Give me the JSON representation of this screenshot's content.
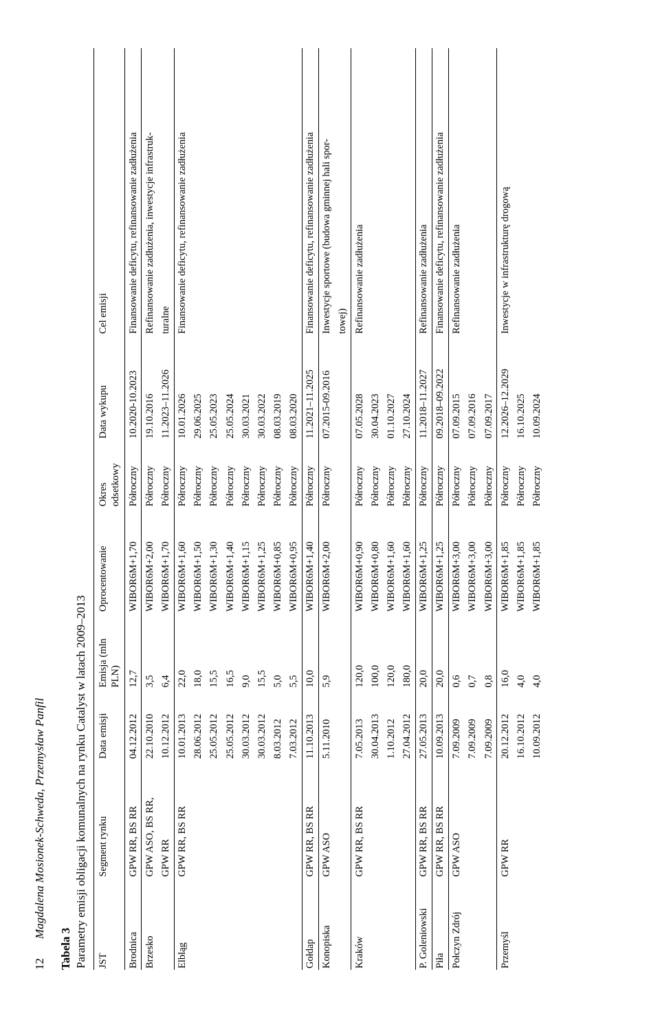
{
  "page_number": "12",
  "authors": "Magdalena Mosionek-Schweda, Przemysław Panfil",
  "table_label": "Tabela 3",
  "table_caption": "Parametry emisji obligacji komunalnych na rynku Catalyst w latach 2009–2013",
  "headers": {
    "jst": "JST",
    "segment": "Segment rynku",
    "data_emisji": "Data emisji",
    "emisja": "Emisja (mln PLN)",
    "oprocentowanie": "Oprocentowanie",
    "okres": "Okres odsetkowy",
    "data_wykupu": "Data wykupu",
    "cel": "Cel emisji"
  },
  "rows": [
    {
      "group_start": true,
      "jst": "Brodnica",
      "segment": "GPW RR, BS RR",
      "data_emisji": "04.12.2012",
      "emisja": "12,7",
      "oproc": "WIBOR6M+1,70",
      "okres": "Półroczny",
      "wykup": "10.2020-10.2023",
      "cel": "Finansowanie deficytu, refinansowanie zadłużenia"
    },
    {
      "group_start": true,
      "jst": "Brzesko",
      "segment": "GPW ASO, BS RR,",
      "data_emisji": "22.10.2010",
      "emisja": "3,5",
      "oproc": "WIBOR6M+2,00",
      "okres": "Półroczny",
      "wykup": "19.10.2016",
      "cel": "Refinansowanie zadłużenia, inwestycje infrastruk-"
    },
    {
      "group_start": false,
      "jst": "",
      "segment": "GPW RR",
      "data_emisji": "10.12.2012",
      "emisja": "6,4",
      "oproc": "WIBOR6M+1,70",
      "okres": "Półroczny",
      "wykup": "11.2023–11.2026",
      "cel": "turalne"
    },
    {
      "group_start": true,
      "jst": "Elbląg",
      "segment": "GPW RR, BS RR",
      "data_emisji": "10.01.2013",
      "emisja": "22,0",
      "oproc": "WIBOR6M+1,60",
      "okres": "Półroczny",
      "wykup": "10.01.2026",
      "cel": "Finansowanie deficytu, refinansowanie zadłużenia"
    },
    {
      "group_start": false,
      "jst": "",
      "segment": "",
      "data_emisji": "28.06.2012",
      "emisja": "18,0",
      "oproc": "WIBOR6M+1,50",
      "okres": "Półroczny",
      "wykup": "29.06.2025",
      "cel": ""
    },
    {
      "group_start": false,
      "jst": "",
      "segment": "",
      "data_emisji": "25.05.2012",
      "emisja": "15,5",
      "oproc": "WIBOR6M+1,30",
      "okres": "Półroczny",
      "wykup": "25.05.2023",
      "cel": ""
    },
    {
      "group_start": false,
      "jst": "",
      "segment": "",
      "data_emisji": "25.05.2012",
      "emisja": "16,5",
      "oproc": "WIBOR6M+1,40",
      "okres": "Półroczny",
      "wykup": "25.05.2024",
      "cel": ""
    },
    {
      "group_start": false,
      "jst": "",
      "segment": "",
      "data_emisji": "30.03.2012",
      "emisja": "9,0",
      "oproc": "WIBOR6M+1,15",
      "okres": "Półroczny",
      "wykup": "30.03.2021",
      "cel": ""
    },
    {
      "group_start": false,
      "jst": "",
      "segment": "",
      "data_emisji": "30.03.2012",
      "emisja": "15,5",
      "oproc": "WIBOR6M+1,25",
      "okres": "Półroczny",
      "wykup": "30.03.2022",
      "cel": ""
    },
    {
      "group_start": false,
      "jst": "",
      "segment": "",
      "data_emisji": "8.03.2012",
      "emisja": "5,0",
      "oproc": "WIBOR6M+0,85",
      "okres": "Półroczny",
      "wykup": "08.03.2019",
      "cel": ""
    },
    {
      "group_start": false,
      "jst": "",
      "segment": "",
      "data_emisji": "7.03.2012",
      "emisja": "5,5",
      "oproc": "WIBOR6M+0,95",
      "okres": "Półroczny",
      "wykup": "08.03.2020",
      "cel": ""
    },
    {
      "group_start": true,
      "jst": "Gołdap",
      "segment": "GPW RR, BS RR",
      "data_emisji": "11.10.2013",
      "emisja": "10,0",
      "oproc": "WIBOR6M+1,40",
      "okres": "Półroczny",
      "wykup": "11.2021–11.2025",
      "cel": "Finansowanie deficytu, refinansowanie zadłużenia"
    },
    {
      "group_start": true,
      "jst": "Konopiska",
      "segment": "GPW ASO",
      "data_emisji": "5.11.2010",
      "emisja": "5,9",
      "oproc": "WIBOR6M+2,00",
      "okres": "Półroczny",
      "wykup": "07.2015-09.2016",
      "cel": "Inwestycje sportowe (budowa gminnej hali spor-"
    },
    {
      "group_start": false,
      "jst": "",
      "segment": "",
      "data_emisji": "",
      "emisja": "",
      "oproc": "",
      "okres": "",
      "wykup": "",
      "cel": "towej)"
    },
    {
      "group_start": true,
      "jst": "Kraków",
      "segment": "GPW RR, BS RR",
      "data_emisji": "7.05.2013",
      "emisja": "120,0",
      "oproc": "WIBOR6M+0,90",
      "okres": "Półroczny",
      "wykup": "07.05.2028",
      "cel": "Refinansowanie zadłużenia"
    },
    {
      "group_start": false,
      "jst": "",
      "segment": "",
      "data_emisji": "30.04.2013",
      "emisja": "100,0",
      "oproc": "WIBOR6M+0,80",
      "okres": "Półroczny",
      "wykup": "30.04.2023",
      "cel": ""
    },
    {
      "group_start": false,
      "jst": "",
      "segment": "",
      "data_emisji": "1.10.2012",
      "emisja": "120,0",
      "oproc": "WIBOR6M+1,60",
      "okres": "Półroczny",
      "wykup": "01.10.2027",
      "cel": ""
    },
    {
      "group_start": false,
      "jst": "",
      "segment": "",
      "data_emisji": "27.04.2012",
      "emisja": "180,0",
      "oproc": "WIBOR6M+1,60",
      "okres": "Półroczny",
      "wykup": "27.10.2024",
      "cel": ""
    },
    {
      "group_start": true,
      "jst": "P. Goleniowski",
      "segment": "GPW RR, BS RR",
      "data_emisji": "27.05.2013",
      "emisja": "20,0",
      "oproc": "WIBOR6M+1,25",
      "okres": "Półroczny",
      "wykup": "11.2018–11.2027",
      "cel": "Refinansowanie zadłużenia"
    },
    {
      "group_start": true,
      "jst": "Piła",
      "segment": "GPW RR, BS RR",
      "data_emisji": "10.09.2013",
      "emisja": "20,0",
      "oproc": "WIBOR6M+1,25",
      "okres": "Półroczny",
      "wykup": "09.2018–09.2022",
      "cel": "Finansowanie deficytu, refinansowanie zadłużenia"
    },
    {
      "group_start": true,
      "jst": "Połczyn Zdrój",
      "segment": "GPW ASO",
      "data_emisji": "7.09.2009",
      "emisja": "0,6",
      "oproc": "WIBOR6M+3,00",
      "okres": "Półroczny",
      "wykup": "07.09.2015",
      "cel": "Refinansowanie zadłużenia"
    },
    {
      "group_start": false,
      "jst": "",
      "segment": "",
      "data_emisji": "7.09.2009",
      "emisja": "0,7",
      "oproc": "WIBOR6M+3,00",
      "okres": "Półroczny",
      "wykup": "07.09.2016",
      "cel": ""
    },
    {
      "group_start": false,
      "jst": "",
      "segment": "",
      "data_emisji": "7.09.2009",
      "emisja": "0,8",
      "oproc": "WIBOR6M+3,00",
      "okres": "Półroczny",
      "wykup": "07.09.2017",
      "cel": ""
    },
    {
      "group_start": true,
      "jst": "Przemyśl",
      "segment": "GPW RR",
      "data_emisji": "20.12.2012",
      "emisja": "16,0",
      "oproc": "WIBOR6M+1,85",
      "okres": "Półroczny",
      "wykup": "12.2026–12.2029",
      "cel": "Inwestycje w infrastrukturę drogową"
    },
    {
      "group_start": false,
      "jst": "",
      "segment": "",
      "data_emisji": "16.10.2012",
      "emisja": "4,0",
      "oproc": "WIBOR6M+1,85",
      "okres": "Półroczny",
      "wykup": "16.10.2025",
      "cel": ""
    },
    {
      "group_start": false,
      "jst": "",
      "segment": "",
      "data_emisji": "10.09.2012",
      "emisja": "4,0",
      "oproc": "WIBOR6M+1,85",
      "okres": "Półroczny",
      "wykup": "10.09.2024",
      "cel": ""
    }
  ]
}
